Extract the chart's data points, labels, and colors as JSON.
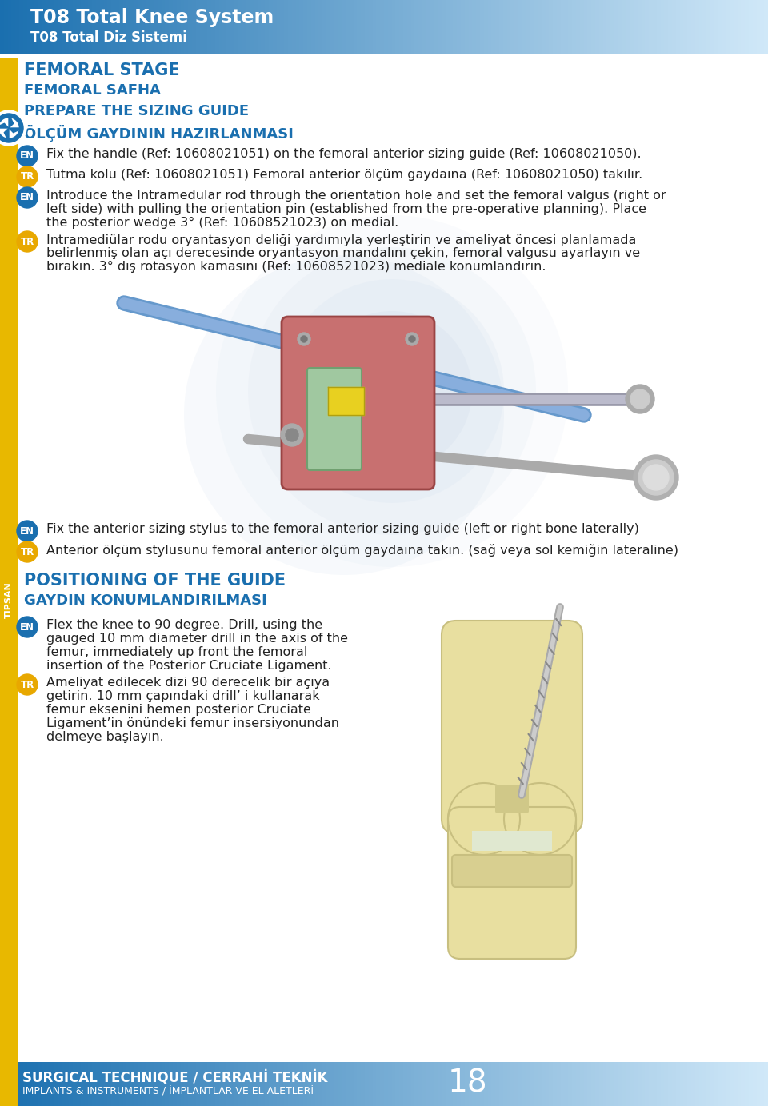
{
  "page_width": 9.6,
  "page_height": 13.83,
  "bg_color": "#ffffff",
  "header_bg_left": "#1a6faf",
  "header_bg_right": "#d0e8f8",
  "header_title_line1": "T08 Total Knee System",
  "header_title_line2": "T08 Total Diz Sistemi",
  "header_title_color": "#ffffff",
  "sidebar_color": "#e8b800",
  "tipsan_text": "TIPSAN",
  "section_color": "#1a6faf",
  "femoral_stage_line1": "FEMORAL STAGE",
  "femoral_stage_line2": "FEMORAL SAFHA",
  "femoral_stage_line3": "PREPARE THE SIZING GUIDE",
  "femoral_stage_line4": "ÖLÇÜM GAYDININ HAZIRLANMASI",
  "en_badge_color": "#1a6faf",
  "tr_badge_color": "#e8a800",
  "body_text_color": "#222222",
  "para1_en": "Fix the handle (Ref: 10608021051) on the femoral anterior sizing guide (Ref: 10608021050).",
  "para1_tr": "Tutma kolu (Ref: 10608021051) Femoral anterior ölçüm gaydaına (Ref: 10608021050) takılır.",
  "para2_en": "Introduce the Intramedular rod through the orientation hole and set the femoral valgus (right or left side) with pulling the orientation pin (established from the pre-operative planning). Place the posterior wedge 3° (Ref: 10608521023) on medial.",
  "para2_tr": "Intramediülar rodu oryantasyon deliği yardımıyla yerleştirin ve ameliyat öncesi planlamada belirlenmiş olan açı derecesinde oryantasyon mandalını çekin, femoral valgusu ayarlayın ve bırakın. 3° dış rotasyon kamasını (Ref: 10608521023) mediale konumlandırın.",
  "para3_en": "Fix the anterior sizing stylus to the femoral anterior sizing guide (left or right bone laterally)",
  "para3_tr": "Anterior ölçüm stylusunu femoral anterior ölçüm gaydaına takın. (sağ veya sol kemiğin lateraline)",
  "positioning_line1": "POSITIONING OF THE GUIDE",
  "positioning_line2": "GAYDIN KONUMLANDIRILMASI",
  "para4_en": "Flex the knee to 90 degree. Drill, using the gauged 10 mm diameter drill in the axis of the femur, immediately up front the femoral insertion of the Posterior Cruciate Ligament.",
  "para4_tr": "Ameliyat edilecek dizi 90 derecelik bir açıya getirin. 10 mm çapındaki drill’ i kullanarak femur  eksenini hemen posterior Cruciate Ligament’in önündeki femur insersiyonundan delmeye başlayın.",
  "footer_line1": "SURGICAL TECHNIQUE / CERRAHİ TEKNİK",
  "footer_line2": "IMPLANTS & INSTRUMENTS / İMPLANTLAR VE EL ALETLERİ",
  "footer_page_num": "18",
  "footer_text_color": "#ffffff"
}
